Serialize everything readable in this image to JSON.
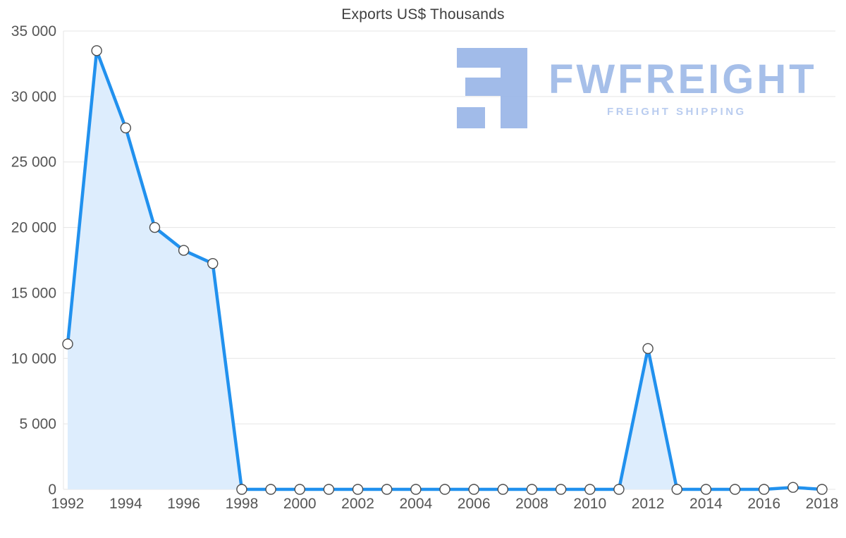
{
  "title": "Exports US$ Thousands",
  "logo": {
    "text": "FWFREIGHT",
    "subtitle": "FREIGHT SHIPPING",
    "text_color": "#a2bce8",
    "subtitle_color": "#b6caef",
    "glyph_color": "#9cb8e8"
  },
  "chart_data": {
    "type": "area",
    "title": "Exports US$ Thousands",
    "x": [
      1992,
      1993,
      1994,
      1995,
      1996,
      1997,
      1998,
      1999,
      2000,
      2001,
      2002,
      2003,
      2004,
      2005,
      2006,
      2007,
      2008,
      2009,
      2010,
      2011,
      2012,
      2013,
      2014,
      2015,
      2016,
      2017,
      2018
    ],
    "values": [
      11100,
      33500,
      27600,
      20000,
      18250,
      17250,
      0,
      0,
      0,
      0,
      0,
      0,
      0,
      0,
      0,
      0,
      0,
      0,
      0,
      0,
      10750,
      0,
      0,
      0,
      0,
      150,
      0
    ],
    "xlabel": "",
    "ylabel": "Exports US$ Thousands",
    "ylim": [
      0,
      35000
    ],
    "y_ticks": [
      0,
      5000,
      10000,
      15000,
      20000,
      25000,
      30000,
      35000
    ],
    "y_tick_labels": [
      "0",
      "5 000",
      "10 000",
      "15 000",
      "20 000",
      "25 000",
      "30 000",
      "35 000"
    ],
    "x_tick_labels": [
      "1992",
      "1994",
      "1996",
      "1998",
      "2000",
      "2002",
      "2004",
      "2006",
      "2008",
      "2010",
      "2012",
      "2014",
      "2016",
      "2018"
    ],
    "x_tick_step": 2,
    "grid": true,
    "legend": "none",
    "line_color": "#2191ee",
    "fill_color": "#ddedfd",
    "grid_color": "#e5e5e5",
    "marker_fill": "#ffffff",
    "marker_stroke": "#4d4d4d"
  }
}
